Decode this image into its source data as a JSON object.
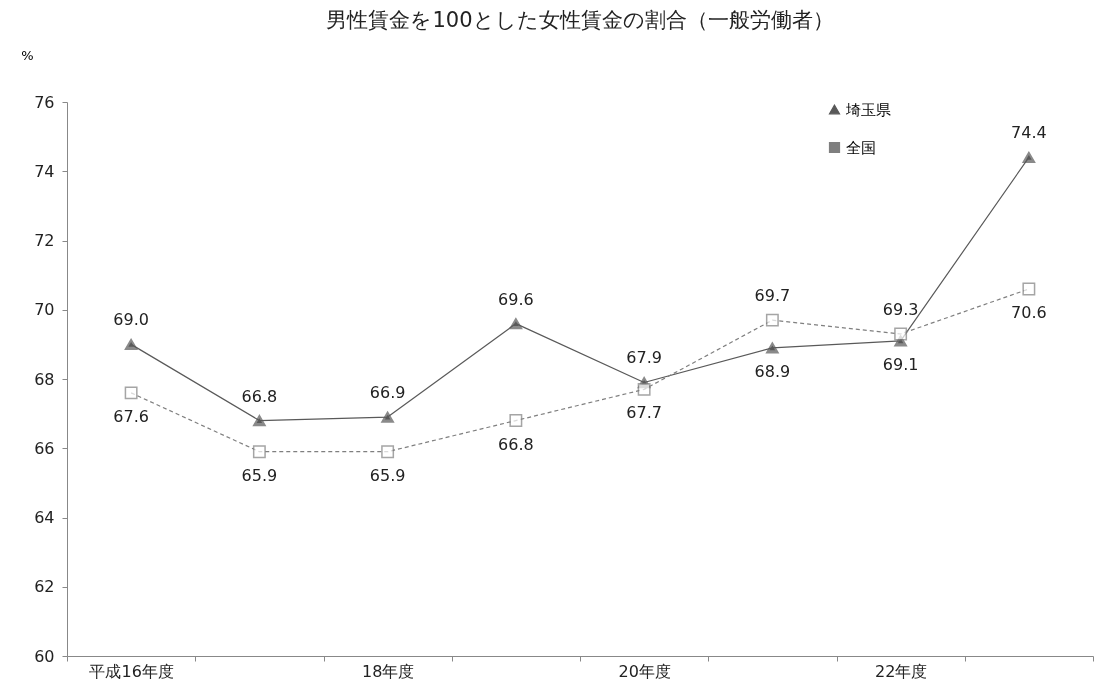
{
  "chart_data": {
    "type": "line",
    "title": "男性賃金を100とした女性賃金の割合（一般労働者）",
    "ylabel": "%",
    "categories": [
      "平成16年度",
      null,
      "18年度",
      null,
      "20年度",
      null,
      "22年度",
      null
    ],
    "series": [
      {
        "name": "埼玉県",
        "color": "#595959",
        "marker": "triangle",
        "line_style": "solid",
        "values": [
          69.0,
          66.8,
          66.9,
          69.6,
          67.9,
          68.9,
          69.1,
          74.4
        ],
        "value_labels": [
          "69.0",
          "66.8",
          "66.9",
          "69.6",
          "67.9",
          "68.9",
          "69.1",
          "74.4"
        ]
      },
      {
        "name": "全国",
        "color": "#7f7f7f",
        "marker": "square",
        "line_style": "dashed",
        "values": [
          67.6,
          65.9,
          65.9,
          66.8,
          67.7,
          69.7,
          69.3,
          70.6
        ],
        "value_labels": [
          "67.6",
          "65.9",
          "65.9",
          "66.8",
          "67.7",
          "69.7",
          "69.3",
          "70.6"
        ]
      }
    ],
    "ylim": [
      60,
      76
    ],
    "yticks": [
      60,
      62,
      64,
      66,
      68,
      70,
      72,
      74,
      76
    ],
    "grid": false,
    "legend": "top right"
  }
}
